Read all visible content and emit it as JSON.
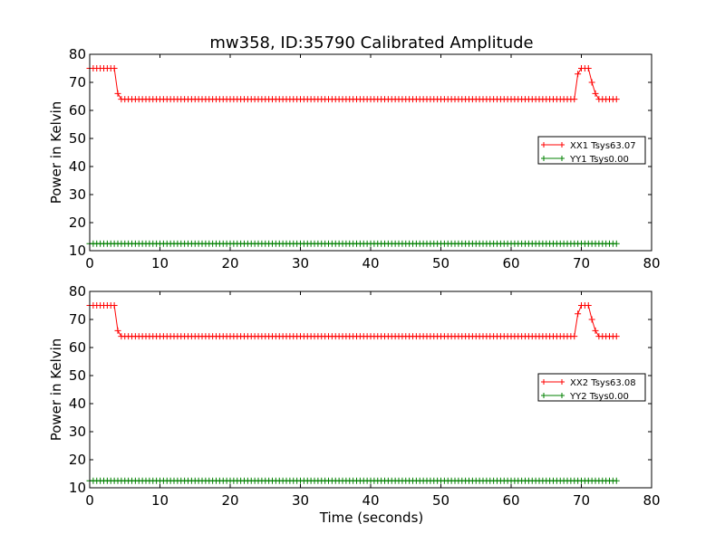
{
  "figure": {
    "title": "mw358, ID:35790 Calibrated Amplitude",
    "xlabel": "Time (seconds)"
  },
  "chart_data": [
    {
      "type": "line",
      "ylabel": "Power in Kelvin",
      "xlabel": "",
      "xlim": [
        0,
        80
      ],
      "ylim": [
        10,
        80
      ],
      "xticks": [
        0,
        10,
        20,
        30,
        40,
        50,
        60,
        70,
        80
      ],
      "yticks": [
        10,
        20,
        30,
        40,
        50,
        60,
        70,
        80
      ],
      "grid": false,
      "legend_position": "right",
      "series": [
        {
          "name": "XX1 Tsys63.07",
          "color": "#ff0000",
          "marker": "+",
          "x_start": 0,
          "x_end": 75,
          "x_step": 0.5,
          "levels": [
            {
              "from": 0,
              "to": 3.5,
              "value": 75
            },
            {
              "from": 4,
              "to": 4,
              "value": 66
            },
            {
              "from": 4.5,
              "to": 69,
              "value": 64
            },
            {
              "from": 69.5,
              "to": 69.5,
              "value": 73
            },
            {
              "from": 70,
              "to": 71,
              "value": 75
            },
            {
              "from": 71.5,
              "to": 71.5,
              "value": 70
            },
            {
              "from": 72,
              "to": 72,
              "value": 66
            },
            {
              "from": 72.5,
              "to": 75,
              "value": 64
            }
          ]
        },
        {
          "name": "YY1 Tsys0.00",
          "color": "#008000",
          "marker": "+",
          "x_start": 0,
          "x_end": 75,
          "x_step": 0.5,
          "levels": [
            {
              "from": 0,
              "to": 75,
              "value": 12.5
            }
          ]
        }
      ]
    },
    {
      "type": "line",
      "ylabel": "Power in Kelvin",
      "xlabel": "Time (seconds)",
      "xlim": [
        0,
        80
      ],
      "ylim": [
        10,
        80
      ],
      "xticks": [
        0,
        10,
        20,
        30,
        40,
        50,
        60,
        70,
        80
      ],
      "yticks": [
        10,
        20,
        30,
        40,
        50,
        60,
        70,
        80
      ],
      "grid": false,
      "legend_position": "right",
      "series": [
        {
          "name": "XX2 Tsys63.08",
          "color": "#ff0000",
          "marker": "+",
          "x_start": 0,
          "x_end": 75,
          "x_step": 0.5,
          "levels": [
            {
              "from": 0,
              "to": 3.5,
              "value": 75
            },
            {
              "from": 4,
              "to": 4,
              "value": 66
            },
            {
              "from": 4.5,
              "to": 69,
              "value": 64
            },
            {
              "from": 69.5,
              "to": 69.5,
              "value": 72
            },
            {
              "from": 70,
              "to": 71,
              "value": 75
            },
            {
              "from": 71.5,
              "to": 71.5,
              "value": 70
            },
            {
              "from": 72,
              "to": 72,
              "value": 66
            },
            {
              "from": 72.5,
              "to": 75,
              "value": 64
            }
          ]
        },
        {
          "name": "YY2 Tsys0.00",
          "color": "#008000",
          "marker": "+",
          "x_start": 0,
          "x_end": 75,
          "x_step": 0.5,
          "levels": [
            {
              "from": 0,
              "to": 75,
              "value": 12.5
            }
          ]
        }
      ]
    }
  ]
}
